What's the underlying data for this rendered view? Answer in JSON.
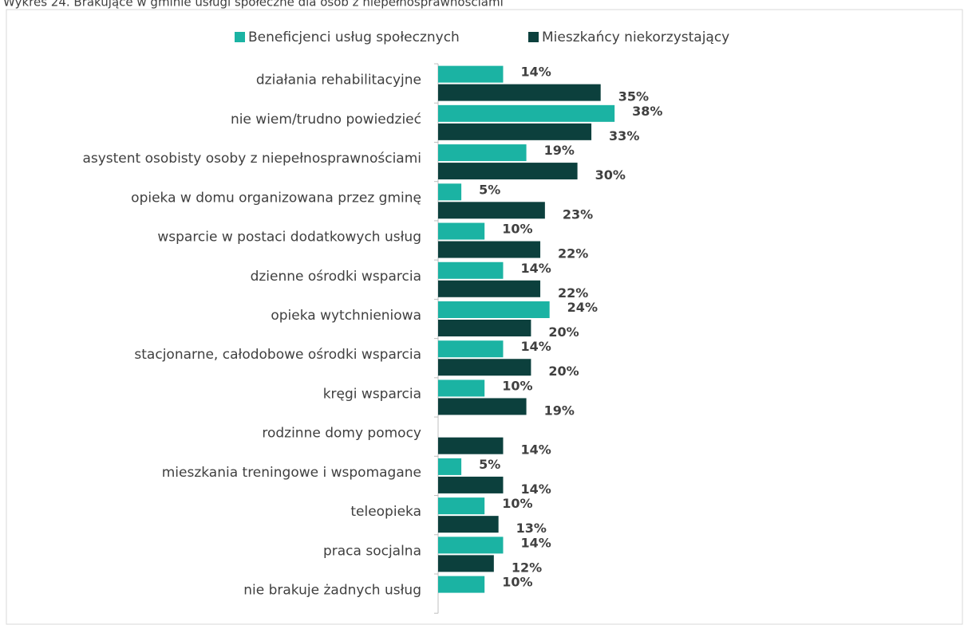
{
  "chart_data": {
    "type": "hbar",
    "title": "Wykres 24. Brakujące w gminie usługi społeczne dla osób z niepełnosprawnościami",
    "categories": [
      "działania rehabilitacyjne",
      "nie wiem/trudno powiedzieć",
      "asystent osobisty osoby z niepełnosprawnościami",
      "opieka w domu organizowana przez gminę",
      "wsparcie w postaci dodatkowych usług",
      "dzienne ośrodki wsparcia",
      "opieka wytchnieniowa",
      "stacjonarne, całodobowe ośrodki wsparcia",
      "kręgi wsparcia",
      "rodzinne domy pomocy",
      "mieszkania treningowe i wspomagane",
      "teleopieka",
      "praca socjalna",
      "nie brakuje żadnych usług"
    ],
    "series": [
      {
        "name": "Beneficjenci usług społecznych",
        "color": "#1bb3a3",
        "values": [
          14,
          38,
          19,
          5,
          10,
          14,
          24,
          14,
          10,
          null,
          5,
          10,
          14,
          10
        ],
        "value_labels": [
          "14%",
          "38%",
          "19%",
          "5%",
          "10%",
          "14%",
          "24%",
          "14%",
          "10%",
          null,
          "5%",
          "10%",
          "14%",
          "10%"
        ]
      },
      {
        "name": "Mieszkańcy niekorzystający",
        "color": "#0c403d",
        "values": [
          35,
          33,
          30,
          23,
          22,
          22,
          20,
          20,
          19,
          14,
          14,
          13,
          12,
          null
        ],
        "value_labels": [
          "35%",
          "33%",
          "30%",
          "23%",
          "22%",
          "22%",
          "20%",
          "20%",
          "19%",
          "14%",
          "14%",
          "13%",
          "12%",
          null
        ]
      }
    ],
    "xlim": [
      0,
      100
    ],
    "legend": "top"
  }
}
